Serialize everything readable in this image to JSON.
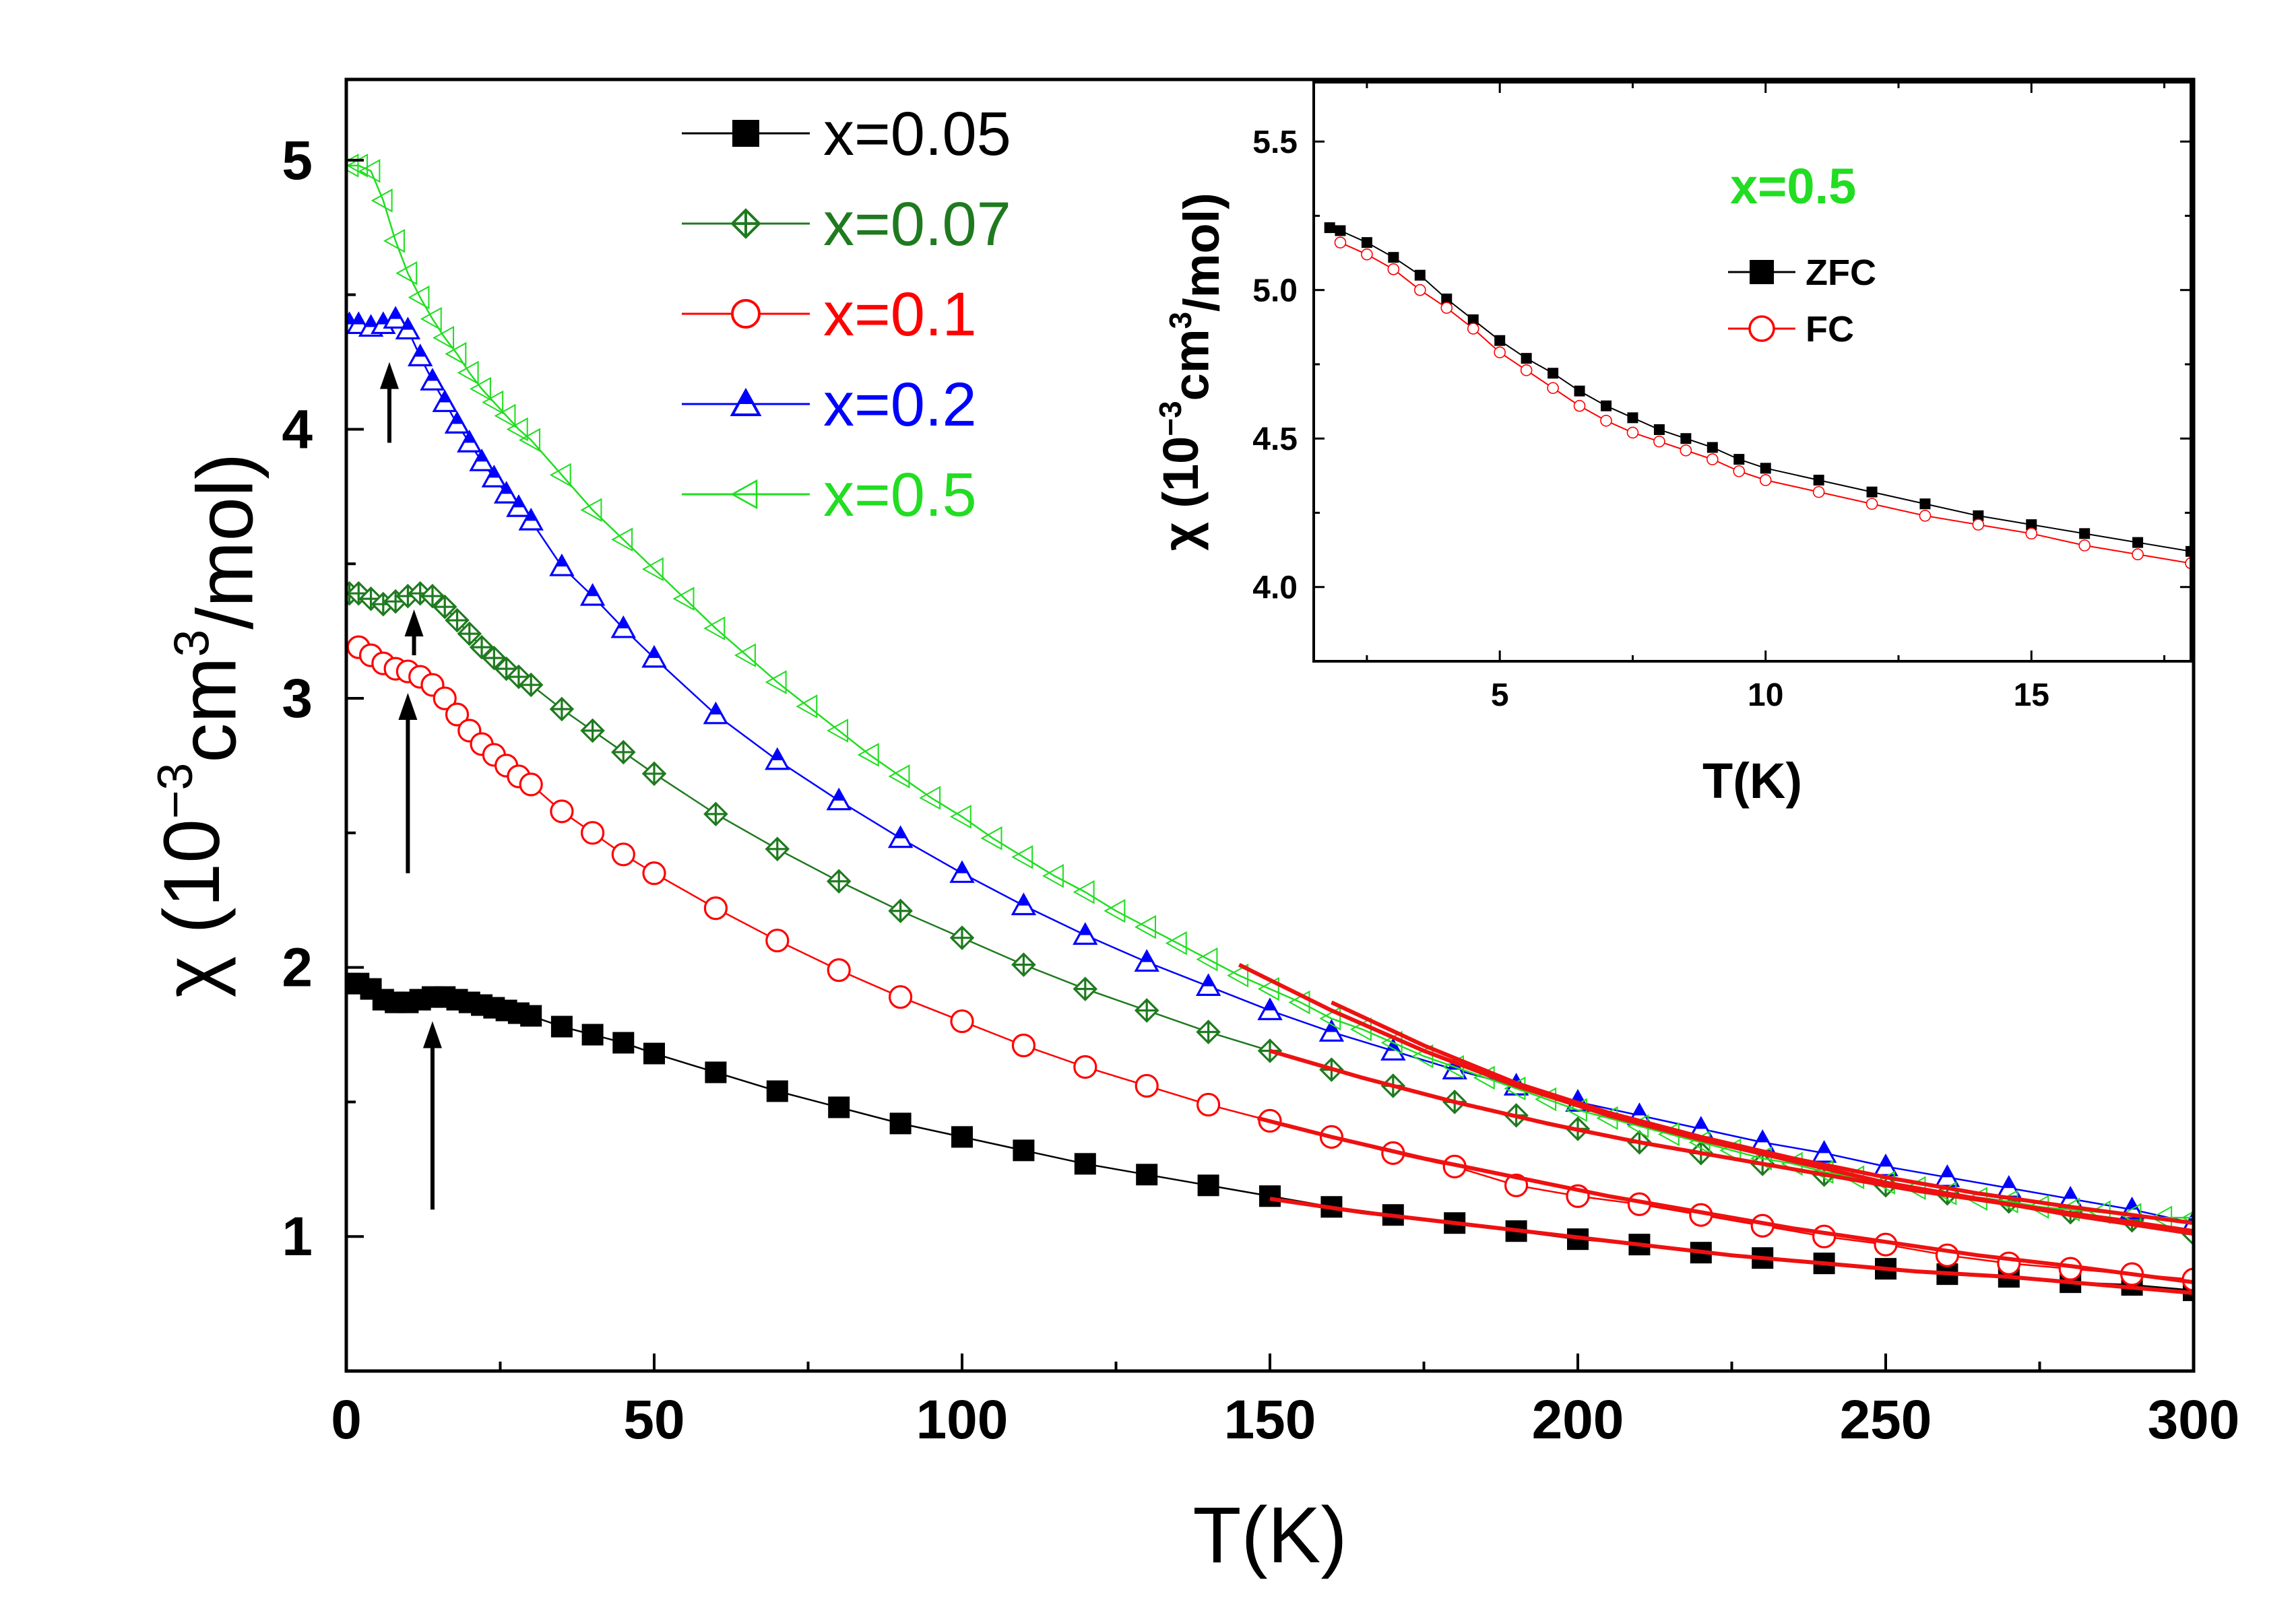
{
  "chart_data": [
    {
      "type": "line",
      "title": "",
      "xlabel": "T(K)",
      "ylabel_parts": [
        "χ (10",
        "−3",
        "cm",
        "3",
        "/mol)"
      ],
      "xlim": [
        0,
        300
      ],
      "ylim": [
        0.5,
        5.3
      ],
      "xticks": [
        0,
        50,
        100,
        150,
        200,
        250,
        300
      ],
      "yticks": [
        1,
        2,
        3,
        4,
        5
      ],
      "legend_position": "top-center",
      "series": [
        {
          "name": "x=0.05",
          "color": "#000000",
          "marker": "square-filled",
          "x": [
            0.5,
            2,
            4,
            6,
            8,
            10,
            12,
            14,
            16,
            18,
            20,
            22,
            24,
            26,
            28,
            30,
            35,
            40,
            45,
            50,
            60,
            70,
            80,
            90,
            100,
            110,
            120,
            130,
            140,
            150,
            160,
            170,
            180,
            190,
            200,
            210,
            220,
            230,
            240,
            250,
            260,
            270,
            280,
            290,
            300
          ],
          "y": [
            1.94,
            1.94,
            1.92,
            1.88,
            1.87,
            1.87,
            1.88,
            1.89,
            1.89,
            1.88,
            1.87,
            1.86,
            1.85,
            1.84,
            1.83,
            1.82,
            1.78,
            1.75,
            1.72,
            1.68,
            1.61,
            1.54,
            1.48,
            1.42,
            1.37,
            1.32,
            1.27,
            1.23,
            1.19,
            1.15,
            1.11,
            1.08,
            1.05,
            1.02,
            0.99,
            0.97,
            0.94,
            0.92,
            0.9,
            0.88,
            0.86,
            0.85,
            0.83,
            0.82,
            0.8
          ]
        },
        {
          "name": "x=0.07",
          "color": "#1f7a1f",
          "marker": "diamond-crosshair",
          "x": [
            0.5,
            2,
            4,
            6,
            8,
            10,
            12,
            14,
            16,
            18,
            20,
            22,
            24,
            26,
            28,
            30,
            35,
            40,
            45,
            50,
            60,
            70,
            80,
            90,
            100,
            110,
            120,
            130,
            140,
            150,
            160,
            170,
            180,
            190,
            200,
            210,
            220,
            230,
            240,
            250,
            260,
            270,
            280,
            290,
            300
          ],
          "y": [
            3.39,
            3.39,
            3.37,
            3.35,
            3.36,
            3.38,
            3.39,
            3.38,
            3.34,
            3.29,
            3.24,
            3.19,
            3.15,
            3.11,
            3.08,
            3.05,
            2.96,
            2.88,
            2.8,
            2.72,
            2.57,
            2.44,
            2.32,
            2.21,
            2.11,
            2.01,
            1.92,
            1.84,
            1.76,
            1.69,
            1.62,
            1.56,
            1.5,
            1.45,
            1.4,
            1.35,
            1.31,
            1.27,
            1.23,
            1.19,
            1.16,
            1.13,
            1.09,
            1.06,
            1.01
          ]
        },
        {
          "name": "x=0.1",
          "color": "#ff0000",
          "marker": "circle-open",
          "x": [
            2,
            4,
            6,
            8,
            10,
            12,
            14,
            16,
            18,
            20,
            22,
            24,
            26,
            28,
            30,
            35,
            40,
            45,
            50,
            60,
            70,
            80,
            90,
            100,
            110,
            120,
            130,
            140,
            150,
            160,
            170,
            180,
            190,
            200,
            210,
            220,
            230,
            240,
            250,
            260,
            270,
            280,
            290,
            300
          ],
          "y": [
            3.19,
            3.16,
            3.13,
            3.11,
            3.1,
            3.08,
            3.05,
            3.0,
            2.94,
            2.88,
            2.83,
            2.79,
            2.75,
            2.71,
            2.68,
            2.58,
            2.5,
            2.42,
            2.35,
            2.22,
            2.1,
            1.99,
            1.89,
            1.8,
            1.71,
            1.63,
            1.56,
            1.49,
            1.43,
            1.37,
            1.31,
            1.26,
            1.19,
            1.15,
            1.12,
            1.08,
            1.04,
            1.0,
            0.97,
            0.93,
            0.9,
            0.88,
            0.86,
            0.84
          ]
        },
        {
          "name": "x=0.2",
          "color": "#0000ff",
          "marker": "triangle-up-half",
          "x": [
            0.5,
            2,
            4,
            6,
            8,
            10,
            12,
            14,
            16,
            18,
            20,
            22,
            24,
            26,
            28,
            30,
            35,
            40,
            45,
            50,
            60,
            70,
            80,
            90,
            100,
            110,
            120,
            130,
            140,
            150,
            160,
            170,
            180,
            190,
            200,
            210,
            220,
            230,
            240,
            250,
            260,
            270,
            280,
            290,
            300
          ],
          "y": [
            4.39,
            4.39,
            4.38,
            4.39,
            4.41,
            4.37,
            4.27,
            4.18,
            4.1,
            4.02,
            3.95,
            3.88,
            3.82,
            3.76,
            3.71,
            3.66,
            3.49,
            3.38,
            3.26,
            3.15,
            2.94,
            2.77,
            2.62,
            2.48,
            2.35,
            2.23,
            2.12,
            2.02,
            1.93,
            1.84,
            1.76,
            1.69,
            1.62,
            1.56,
            1.5,
            1.45,
            1.4,
            1.35,
            1.31,
            1.26,
            1.22,
            1.18,
            1.14,
            1.1,
            1.05
          ]
        },
        {
          "name": "x=0.5",
          "color": "#22dd22",
          "marker": "triangle-left-open",
          "x": [
            0.5,
            2,
            4,
            6,
            8,
            10,
            12,
            14,
            16,
            18,
            20,
            22,
            24,
            26,
            28,
            30,
            35,
            40,
            45,
            50,
            55,
            60,
            65,
            70,
            75,
            80,
            85,
            90,
            95,
            100,
            105,
            110,
            115,
            120,
            125,
            130,
            135,
            140,
            145,
            150,
            155,
            160,
            165,
            170,
            175,
            180,
            185,
            190,
            195,
            200,
            205,
            210,
            215,
            220,
            225,
            230,
            235,
            240,
            245,
            250,
            255,
            260,
            265,
            270,
            275,
            280,
            285,
            290,
            295,
            300
          ],
          "y": [
            4.98,
            4.98,
            4.96,
            4.85,
            4.7,
            4.58,
            4.49,
            4.41,
            4.34,
            4.28,
            4.21,
            4.15,
            4.1,
            4.05,
            4.0,
            3.96,
            3.83,
            3.7,
            3.59,
            3.48,
            3.37,
            3.26,
            3.16,
            3.06,
            2.97,
            2.88,
            2.79,
            2.71,
            2.63,
            2.56,
            2.48,
            2.41,
            2.34,
            2.28,
            2.21,
            2.15,
            2.09,
            2.03,
            1.97,
            1.92,
            1.87,
            1.81,
            1.77,
            1.72,
            1.67,
            1.63,
            1.59,
            1.55,
            1.51,
            1.47,
            1.44,
            1.41,
            1.38,
            1.35,
            1.32,
            1.29,
            1.27,
            1.24,
            1.22,
            1.2,
            1.18,
            1.16,
            1.14,
            1.13,
            1.11,
            1.1,
            1.09,
            1.08,
            1.07,
            1.07
          ]
        }
      ],
      "fits": [
        {
          "series": "x=0.05",
          "color": "#ee1111",
          "x": [
            150,
            165,
            180,
            195,
            210,
            225,
            240,
            255,
            270,
            285,
            300
          ],
          "y": [
            1.14,
            1.09,
            1.05,
            1.01,
            0.97,
            0.93,
            0.9,
            0.87,
            0.85,
            0.82,
            0.79
          ]
        },
        {
          "series": "x=0.07",
          "color": "#ee1111",
          "x": [
            150,
            165,
            180,
            195,
            210,
            225,
            240,
            255,
            270,
            285,
            300
          ],
          "y": [
            1.69,
            1.59,
            1.5,
            1.42,
            1.35,
            1.29,
            1.23,
            1.17,
            1.12,
            1.07,
            1.02
          ]
        },
        {
          "series": "x=0.1",
          "color": "#ee1111",
          "x": [
            148,
            160,
            175,
            190,
            205,
            220,
            235,
            250,
            265,
            280,
            300
          ],
          "y": [
            1.44,
            1.37,
            1.29,
            1.22,
            1.15,
            1.09,
            1.03,
            0.98,
            0.93,
            0.89,
            0.83
          ]
        },
        {
          "series": "x=0.2",
          "color": "#ee1111",
          "x": [
            145,
            160,
            175,
            190,
            205,
            220,
            235,
            250,
            265,
            280,
            300
          ],
          "y": [
            2.01,
            1.84,
            1.69,
            1.56,
            1.45,
            1.36,
            1.28,
            1.2,
            1.14,
            1.08,
            1.01
          ]
        },
        {
          "series": "x=0.5",
          "color": "#ee1111",
          "x": [
            160,
            175,
            190,
            205,
            220,
            235,
            250,
            265,
            280,
            300
          ],
          "y": [
            1.87,
            1.71,
            1.57,
            1.46,
            1.37,
            1.29,
            1.22,
            1.16,
            1.11,
            1.05
          ]
        }
      ],
      "annotations": [
        {
          "type": "arrow",
          "x": 7,
          "y_from": 3.95,
          "y_to": 4.25
        },
        {
          "type": "arrow",
          "x": 11,
          "y_from": 3.16,
          "y_to": 3.33
        },
        {
          "type": "arrow",
          "x": 10,
          "y_from": 2.35,
          "y_to": 3.02
        },
        {
          "type": "arrow",
          "x": 14,
          "y_from": 1.1,
          "y_to": 1.8
        }
      ]
    },
    {
      "type": "line",
      "title": "x=0.5",
      "title_color": "#22dd22",
      "xlabel": "T(K)",
      "ylabel_parts": [
        "χ (10",
        "−3",
        "cm",
        "3",
        "/mol)"
      ],
      "xlim": [
        1.5,
        18
      ],
      "ylim": [
        3.75,
        5.7
      ],
      "xticks": [
        5,
        10,
        15
      ],
      "yticks": [
        4.0,
        4.5,
        5.0,
        5.5
      ],
      "legend_position": "top-right",
      "series": [
        {
          "name": "ZFC",
          "color": "#000000",
          "marker": "square-filled",
          "x": [
            1.8,
            2,
            2.5,
            3,
            3.5,
            4,
            4.5,
            5,
            5.5,
            6,
            6.5,
            7,
            7.5,
            8,
            8.5,
            9,
            9.5,
            10,
            11,
            12,
            13,
            14,
            15,
            16,
            17,
            18
          ],
          "y": [
            5.21,
            5.2,
            5.16,
            5.11,
            5.05,
            4.97,
            4.9,
            4.83,
            4.77,
            4.72,
            4.66,
            4.61,
            4.57,
            4.53,
            4.5,
            4.47,
            4.43,
            4.4,
            4.36,
            4.32,
            4.28,
            4.24,
            4.21,
            4.18,
            4.15,
            4.12
          ]
        },
        {
          "name": "FC",
          "color": "#ff0000",
          "marker": "circle-open",
          "x": [
            2,
            2.5,
            3,
            3.5,
            4,
            4.5,
            5,
            5.5,
            6,
            6.5,
            7,
            7.5,
            8,
            8.5,
            9,
            9.5,
            10,
            11,
            12,
            13,
            14,
            15,
            16,
            17,
            18
          ],
          "y": [
            5.16,
            5.12,
            5.07,
            5.0,
            4.94,
            4.87,
            4.79,
            4.73,
            4.67,
            4.61,
            4.56,
            4.52,
            4.49,
            4.46,
            4.43,
            4.39,
            4.36,
            4.32,
            4.28,
            4.24,
            4.21,
            4.18,
            4.14,
            4.11,
            4.08
          ]
        }
      ]
    }
  ]
}
